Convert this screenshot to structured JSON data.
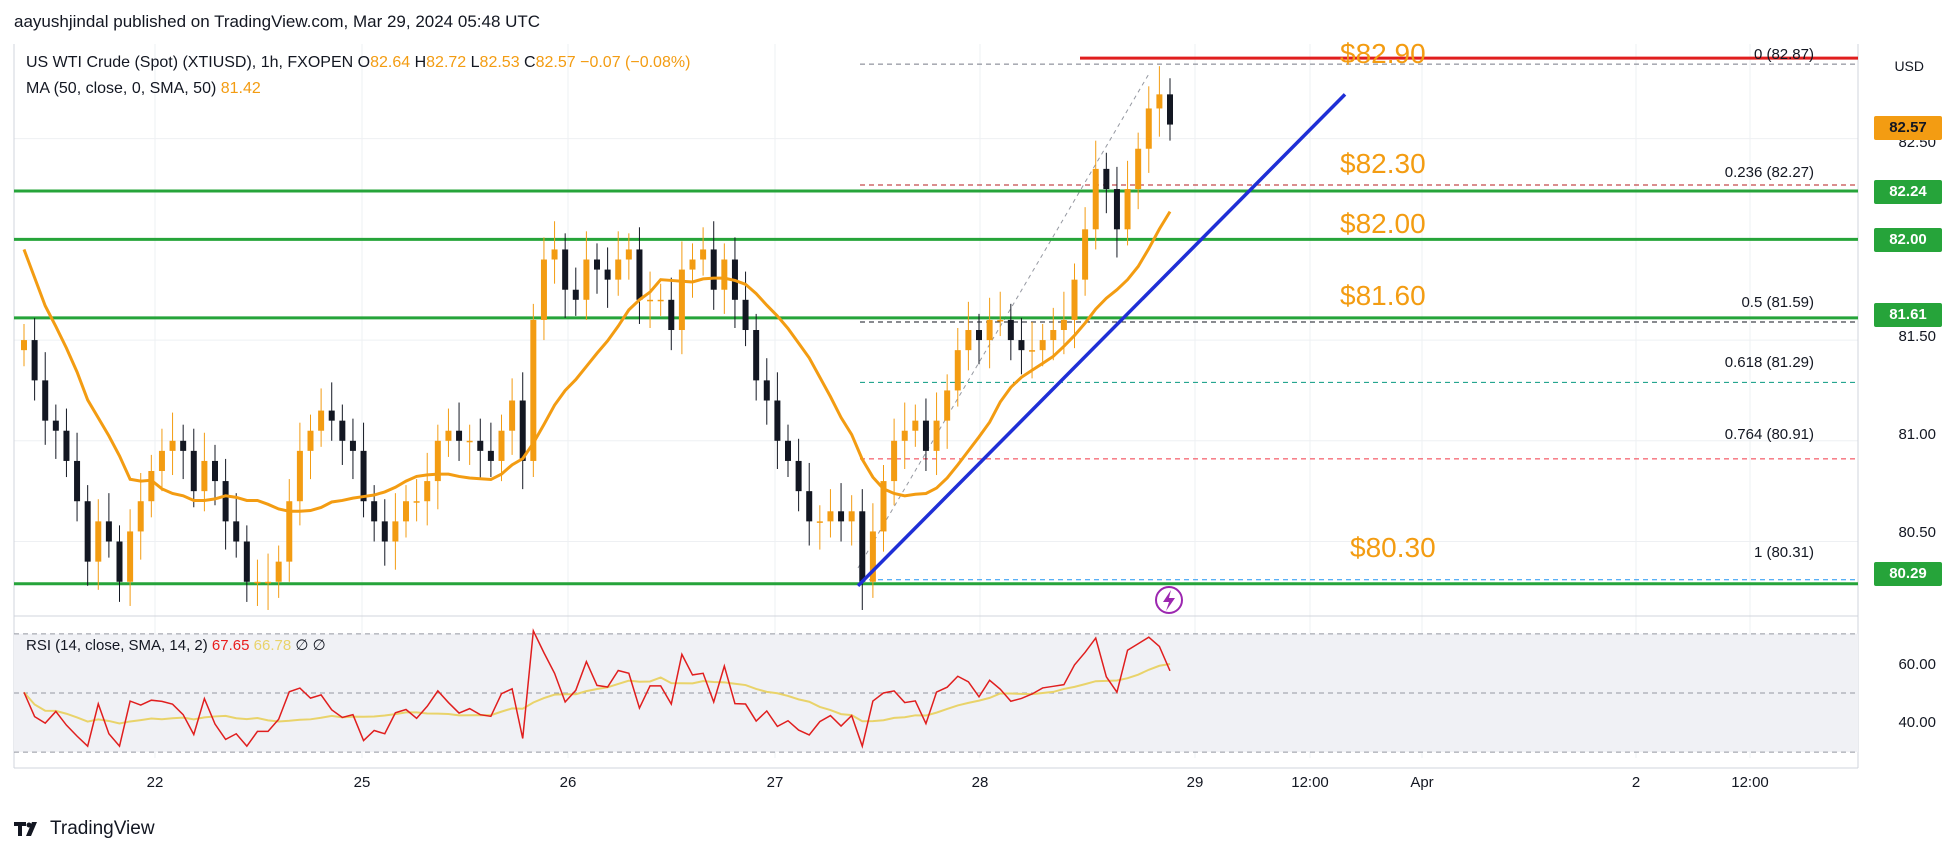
{
  "publisher": "aayushjindal published on TradingView.com, Mar 29, 2024 05:48 UTC",
  "legend": {
    "symbol": "US WTI Crude (Spot) (XTIUSD), 1h, FXOPEN",
    "open_k": "O",
    "open": "82.64",
    "high_k": "H",
    "high": "82.72",
    "low_k": "L",
    "low": "82.53",
    "close_k": "C",
    "close": "82.57",
    "change": "−0.07 (−0.08%)",
    "ma_label": "MA (50, close, 0, SMA, 50)",
    "ma_value": "81.42",
    "rsi_label": "RSI (14, close, SMA, 14, 2)",
    "rsi_value": "67.65",
    "rsi_ma_value": "66.78",
    "rsi_extra": "∅ ∅"
  },
  "brand": "TradingView",
  "currency": "USD",
  "price_annotations": [
    "$82.90",
    "$82.30",
    "$82.00",
    "$81.60",
    "$80.30"
  ],
  "fib_levels": [
    {
      "label": "0 (82.87)",
      "price": 82.87,
      "color": "#787b86"
    },
    {
      "label": "0.236 (82.27)",
      "price": 82.27,
      "color": "#b71c1c"
    },
    {
      "label": "0.5 (81.59)",
      "price": 81.59,
      "color": "#131722"
    },
    {
      "label": "0.618 (81.29)",
      "price": 81.29,
      "color": "#089981"
    },
    {
      "label": "0.764 (80.91)",
      "price": 80.91,
      "color": "#f23645"
    },
    {
      "label": "1 (80.31)",
      "price": 80.31,
      "color": "#2196f3"
    }
  ],
  "price_axis_ticks": [
    "82.50",
    "81.50",
    "81.00",
    "80.50"
  ],
  "rsi_axis_ticks": [
    "60.00",
    "40.00"
  ],
  "axis_badges": [
    {
      "text": "82.57",
      "price": 82.57,
      "bg": "#f39c12",
      "fg": "#131722"
    },
    {
      "text": "82.24",
      "price": 82.24,
      "bg": "#26a43a",
      "fg": "#ffffff"
    },
    {
      "text": "82.00",
      "price": 82.0,
      "bg": "#26a43a",
      "fg": "#ffffff"
    },
    {
      "text": "81.61",
      "price": 81.61,
      "bg": "#26a43a",
      "fg": "#ffffff"
    },
    {
      "text": "80.29",
      "price": 80.29,
      "bg": "#26a43a",
      "fg": "#ffffff"
    }
  ],
  "time_ticks": [
    "22",
    "25",
    "26",
    "27",
    "28",
    "29",
    "12:00",
    "Apr",
    "2",
    "12:00"
  ],
  "colors": {
    "up": "#f39c12",
    "down": "#131722",
    "ma": "#f39c12",
    "support": "#26a43a",
    "trend": "#1f2fd6",
    "resistance": "#e01e1e",
    "rsi": "#e01e1e",
    "rsi_ma": "#e9d36a"
  },
  "chart_data": {
    "type": "candlestick",
    "title": "US WTI Crude (Spot) (XTIUSD), 1h, FXOPEN",
    "ylim": [
      80.15,
      82.97
    ],
    "x_ticks": [
      "22",
      "25",
      "26",
      "27",
      "28",
      "29",
      "12:00",
      "Apr",
      "2",
      "12:00"
    ],
    "horizontal_levels": [
      82.9,
      82.24,
      82.0,
      81.61,
      80.29
    ],
    "trendline": [
      [
        80.28,
        0
      ],
      [
        82.72,
        1
      ]
    ],
    "candles_close_approx": [
      81.5,
      81.3,
      81.1,
      81.05,
      80.9,
      80.7,
      80.4,
      80.6,
      80.5,
      80.3,
      80.55,
      80.7,
      80.85,
      80.95,
      81.0,
      80.95,
      80.75,
      80.9,
      80.8,
      80.6,
      80.5,
      80.3,
      80.3,
      80.3,
      80.4,
      80.7,
      80.95,
      81.05,
      81.15,
      81.1,
      81.0,
      80.95,
      80.7,
      80.6,
      80.5,
      80.6,
      80.7,
      80.7,
      80.8,
      81.0,
      81.05,
      81.0,
      81.0,
      80.95,
      80.9,
      81.05,
      81.2,
      80.9,
      81.6,
      81.9,
      81.95,
      81.75,
      81.7,
      81.9,
      81.85,
      81.8,
      81.9,
      81.95,
      81.7,
      81.7,
      81.7,
      81.55,
      81.85,
      81.9,
      81.95,
      81.75,
      81.9,
      81.7,
      81.55,
      81.3,
      81.2,
      81.0,
      80.9,
      80.75,
      80.6,
      80.6,
      80.65,
      80.6,
      80.65,
      80.3,
      80.55,
      80.8,
      81.0,
      81.05,
      81.1,
      80.95,
      81.1,
      81.25,
      81.45,
      81.55,
      81.5,
      81.6,
      81.6,
      81.5,
      81.45,
      81.45,
      81.5,
      81.55,
      81.6,
      81.8,
      82.05,
      82.35,
      82.25,
      82.05,
      82.25,
      82.45,
      82.65,
      82.72,
      82.57
    ],
    "rsi_ylim": [
      28,
      74
    ],
    "rsi_levels": [
      70,
      50,
      30
    ]
  }
}
